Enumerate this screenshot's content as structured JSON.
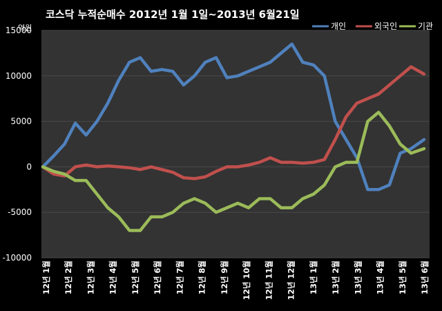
{
  "chart_data": {
    "type": "line",
    "title": "코스닥  누적순매수 2012년 1월 1일~2013년 6월21일",
    "y_unit": "억원",
    "ylim": [
      -10000,
      15000
    ],
    "y_ticks": [
      15000,
      10000,
      5000,
      0,
      -5000,
      -10000
    ],
    "x_labels": [
      "12년 1월",
      "12년 2월",
      "12년 3월",
      "12년 4월",
      "12년 5월",
      "12년 6월",
      "12년 7월",
      "12년 8월",
      "12년 9월",
      "12년 10월",
      "12년 11월",
      "12년 12월",
      "13년 1월",
      "13년 2월",
      "13년 3월",
      "13년 4월",
      "13년 5월",
      "13년 6월"
    ],
    "x": [
      0,
      0.5,
      1,
      1.5,
      2,
      2.5,
      3,
      3.5,
      4,
      4.5,
      5,
      5.5,
      6,
      6.5,
      7,
      7.5,
      8,
      8.5,
      9,
      9.5,
      10,
      10.5,
      11,
      11.5,
      12,
      12.5,
      13,
      13.5,
      14,
      14.5,
      15,
      15.5,
      16,
      16.5,
      17,
      17.6
    ],
    "grid": true,
    "legend_position": "top-right",
    "series": [
      {
        "name": "개인",
        "color": "#4F81BD",
        "values": [
          0,
          1200,
          2500,
          4800,
          3500,
          5000,
          7000,
          9500,
          11500,
          12000,
          10500,
          10700,
          10500,
          9000,
          10000,
          11500,
          12000,
          9800,
          10000,
          10500,
          11000,
          11500,
          12500,
          13500,
          11500,
          11200,
          10000,
          5000,
          3000,
          1000,
          -2500,
          -2500,
          -2000,
          1500,
          2000,
          3000
        ]
      },
      {
        "name": "외국인",
        "color": "#C0504D",
        "values": [
          0,
          -800,
          -1000,
          0,
          200,
          0,
          100,
          0,
          -100,
          -300,
          0,
          -300,
          -600,
          -1200,
          -1300,
          -1100,
          -500,
          0,
          0,
          200,
          500,
          1000,
          500,
          500,
          400,
          500,
          800,
          3000,
          5500,
          7000,
          7500,
          8000,
          9000,
          10000,
          11000,
          10200
        ]
      },
      {
        "name": "기관",
        "color": "#9BBB59",
        "values": [
          0,
          -500,
          -800,
          -1500,
          -1500,
          -3000,
          -4500,
          -5500,
          -7000,
          -7000,
          -5500,
          -5500,
          -5000,
          -4000,
          -3500,
          -4000,
          -5000,
          -4500,
          -4000,
          -4500,
          -3500,
          -3500,
          -4500,
          -4500,
          -3500,
          -3000,
          -2000,
          0,
          500,
          500,
          5000,
          6000,
          4500,
          2500,
          1500,
          2000
        ]
      }
    ]
  }
}
